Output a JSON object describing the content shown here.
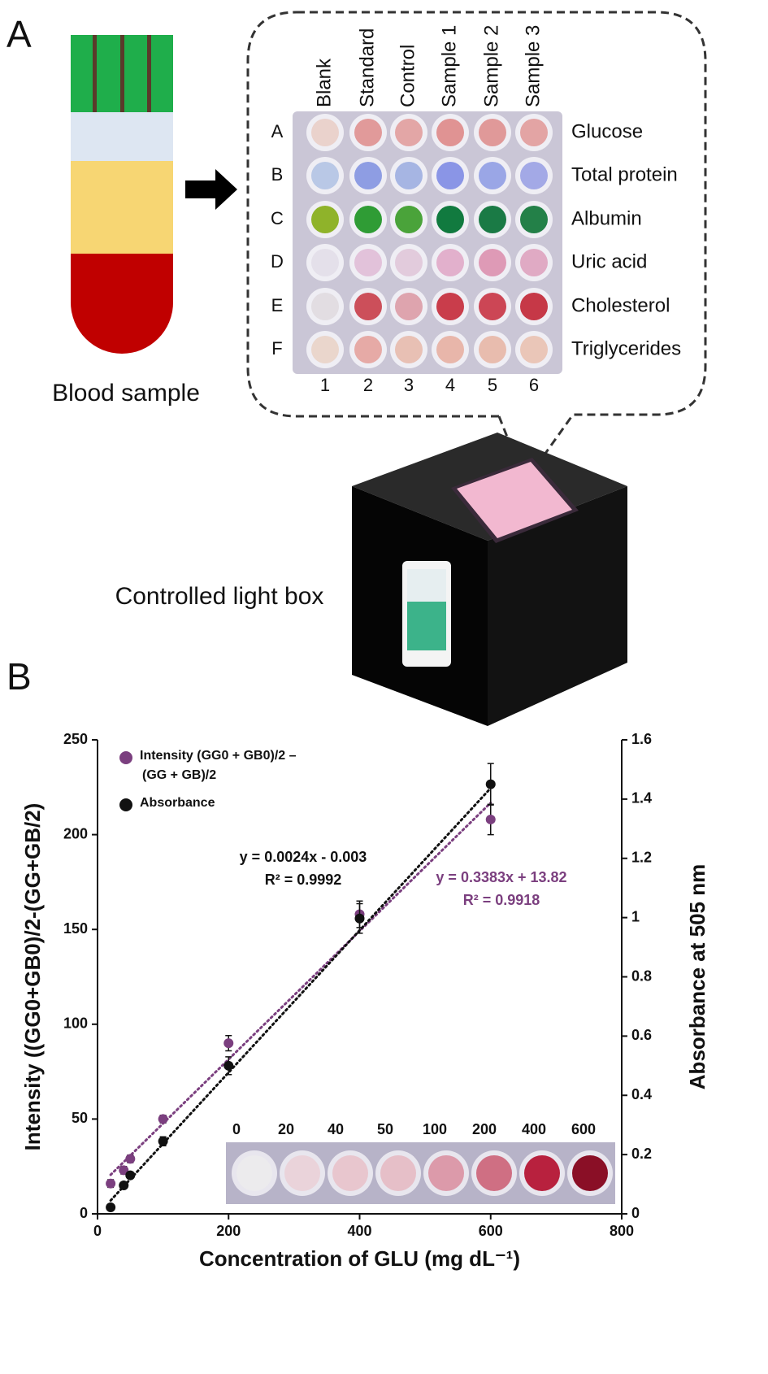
{
  "panel_a": {
    "letter": "A",
    "column_headers": [
      "Blank",
      "Standard",
      "Control",
      "Sample 1",
      "Sample 2",
      "Sample 3"
    ],
    "row_letters": [
      "A",
      "B",
      "C",
      "D",
      "E",
      "F"
    ],
    "row_names": [
      "Glucose",
      "Total protein",
      "Albumin",
      "Uric acid",
      "Cholesterol",
      "Triglycerides"
    ],
    "column_numbers": [
      "1",
      "2",
      "3",
      "4",
      "5",
      "6"
    ],
    "tube_label": "Blood sample",
    "box_label": "Controlled light box"
  },
  "chart_data": {
    "type": "scatter",
    "letter": "B",
    "xlabel": "Concentration of GLU (mg dL⁻¹)",
    "ylabel": "Intensity ((GG0+GB0)/2-(GG+GB/2)",
    "y2label": "Absorbance at 505 nm",
    "x": [
      20,
      40,
      50,
      100,
      200,
      400,
      600
    ],
    "series": [
      {
        "name": [
          "Intensity (GG0 + GB0)/2 –",
          "(GG + GB)/2"
        ],
        "color": "#7b3f7f",
        "values": [
          16,
          23,
          29,
          50,
          90,
          158,
          208
        ],
        "errors": [
          2,
          2,
          2,
          2,
          4,
          7,
          8
        ],
        "fit": {
          "slope": 0.3383,
          "intercept": 13.82,
          "equation": "y = 0.3383x + 13.82",
          "r2": "R² = 0.9918"
        }
      },
      {
        "name": [
          "Absorbance"
        ],
        "color": "#111111",
        "axis": "y2",
        "values": [
          0.022,
          0.096,
          0.13,
          0.245,
          0.5,
          0.997,
          1.45
        ],
        "errors": [
          0.01,
          0.01,
          0.01,
          0.015,
          0.03,
          0.05,
          0.07
        ],
        "fit": {
          "slope": 0.0024,
          "intercept": -0.003,
          "equation": "y = 0.0024x - 0.003",
          "r2": "R² = 0.9992"
        }
      }
    ],
    "xlim": [
      0,
      800
    ],
    "xticks": [
      0,
      200,
      400,
      600,
      800
    ],
    "ylim": [
      0,
      250
    ],
    "yticks": [
      0,
      50,
      100,
      150,
      200,
      250
    ],
    "y2lim": [
      0,
      1.6
    ],
    "y2ticks": [
      0,
      0.2,
      0.4,
      0.6,
      0.8,
      1,
      1.2,
      1.4,
      1.6
    ],
    "inset_labels": [
      "0",
      "20",
      "40",
      "50",
      "100",
      "200",
      "400",
      "600"
    ]
  }
}
